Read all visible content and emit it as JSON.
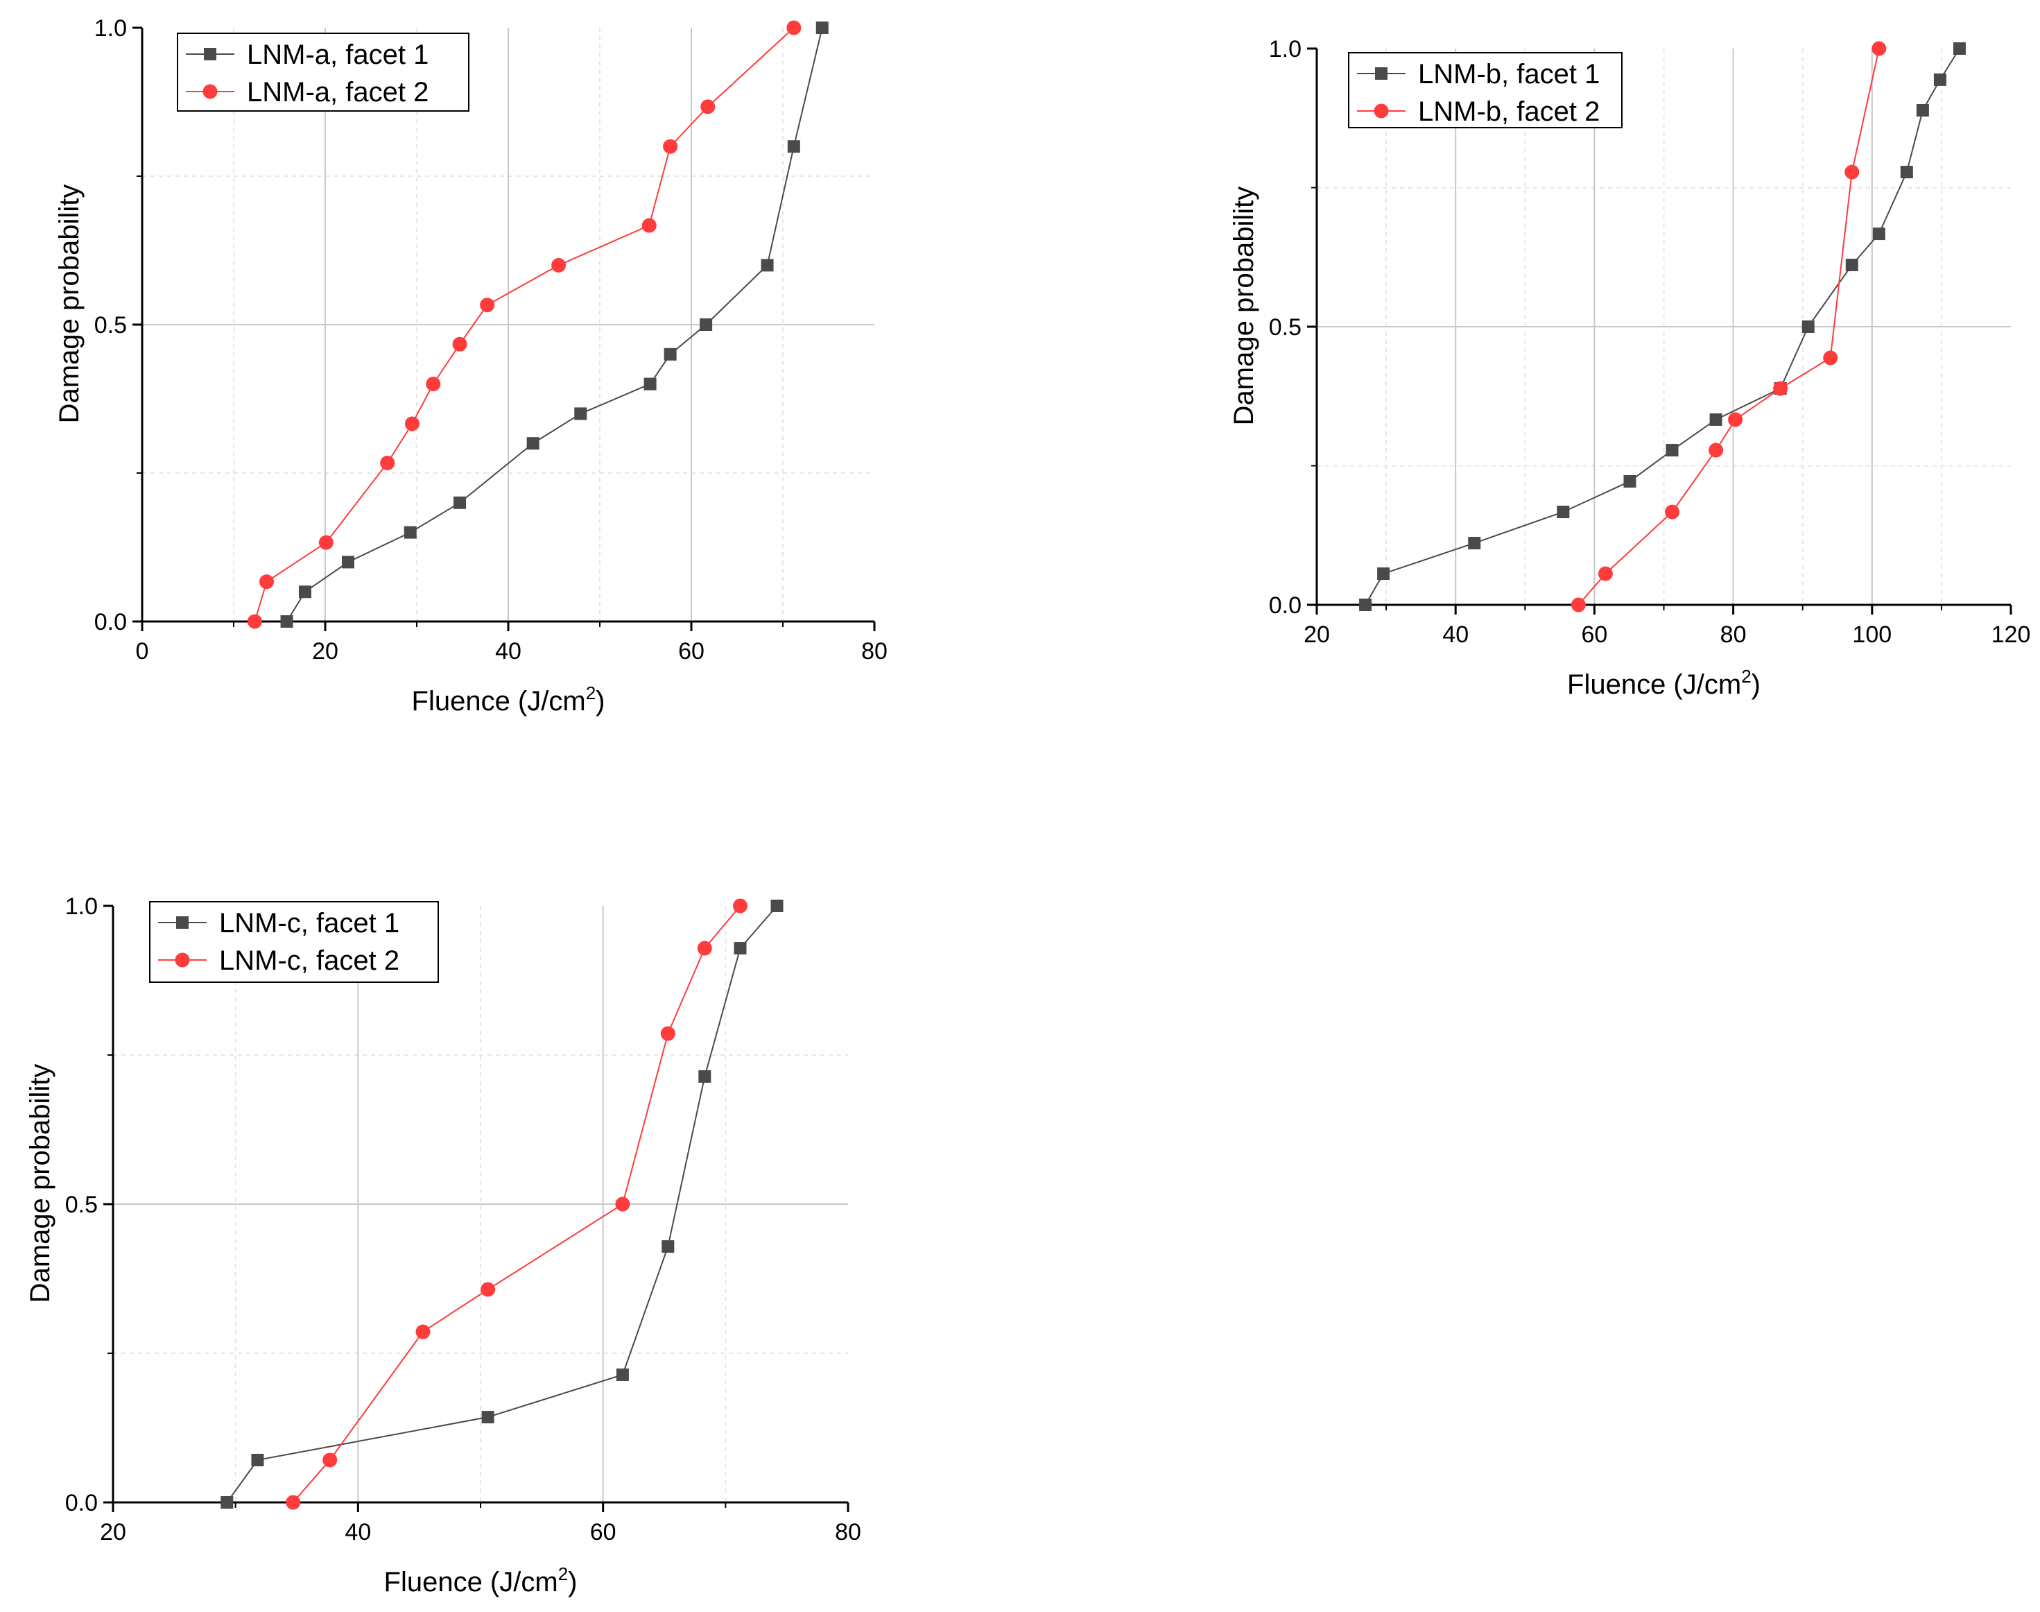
{
  "colors": {
    "facet1": "#4a4a4a",
    "facet2": "#ff3b3b",
    "grid_major": "#c8c8c8",
    "grid_minor": "#e6e6e6",
    "axis": "#000000"
  },
  "chart_data": [
    {
      "id": "lnm-a",
      "type": "line",
      "xlabel": "Fluence (J/cm",
      "xlabel_sup": "2",
      "xlabel_end": ")",
      "ylabel": "Damage probability",
      "xlim": [
        0,
        80
      ],
      "ylim": [
        0,
        1
      ],
      "xticks": [
        0,
        20,
        40,
        60,
        80
      ],
      "xtick_labels": [
        "0",
        "20",
        "40",
        "60",
        "80"
      ],
      "yticks": [
        0,
        0.5,
        1
      ],
      "ytick_labels": [
        "0.0",
        "0.5",
        "1.0"
      ],
      "legend_position": "top-left",
      "series": [
        {
          "name": "LNM-a, facet 1",
          "marker": "square",
          "x": [
            15.8,
            17.8,
            22.5,
            29.3,
            34.7,
            42.7,
            47.9,
            55.5,
            57.7,
            61.6,
            68.3,
            71.2,
            74.3
          ],
          "y": [
            0,
            0.05,
            0.1,
            0.15,
            0.2,
            0.3,
            0.35,
            0.4,
            0.45,
            0.5,
            0.6,
            0.8,
            1.0
          ]
        },
        {
          "name": "LNM-a, facet 2",
          "marker": "circle",
          "x": [
            12.3,
            13.6,
            20.1,
            26.8,
            29.5,
            31.8,
            34.7,
            37.7,
            45.5,
            55.4,
            57.7,
            61.8,
            71.2
          ],
          "y": [
            0,
            0.067,
            0.133,
            0.267,
            0.333,
            0.4,
            0.467,
            0.533,
            0.6,
            0.667,
            0.8,
            0.867,
            1.0
          ]
        }
      ]
    },
    {
      "id": "lnm-b",
      "type": "line",
      "xlabel": "Fluence (J/cm",
      "xlabel_sup": "2",
      "xlabel_end": ")",
      "ylabel": "Damage probability",
      "xlim": [
        20,
        120
      ],
      "ylim": [
        0,
        1
      ],
      "xticks": [
        20,
        40,
        60,
        80,
        100,
        120
      ],
      "xtick_labels": [
        "20",
        "40",
        "60",
        "80",
        "100",
        "120"
      ],
      "yticks": [
        0,
        0.5,
        1
      ],
      "ytick_labels": [
        "0.0",
        "0.5",
        "1.0"
      ],
      "legend_position": "top-left",
      "series": [
        {
          "name": "LNM-b, facet 1",
          "marker": "square",
          "x": [
            27.0,
            29.6,
            42.7,
            55.5,
            65.1,
            71.2,
            77.5,
            86.8,
            90.8,
            97.1,
            101.0,
            105.0,
            107.3,
            109.8,
            112.6
          ],
          "y": [
            0,
            0.056,
            0.111,
            0.167,
            0.222,
            0.278,
            0.333,
            0.389,
            0.5,
            0.611,
            0.667,
            0.778,
            0.889,
            0.944,
            1.0
          ]
        },
        {
          "name": "LNM-b, facet 2",
          "marker": "circle",
          "x": [
            57.7,
            61.6,
            71.2,
            77.5,
            80.3,
            86.8,
            94.0,
            97.1,
            101.0
          ],
          "y": [
            0,
            0.056,
            0.167,
            0.278,
            0.333,
            0.389,
            0.444,
            0.778,
            1.0
          ]
        }
      ]
    },
    {
      "id": "lnm-c",
      "type": "line",
      "xlabel": "Fluence (J/cm",
      "xlabel_sup": "2",
      "xlabel_end": ")",
      "ylabel": "Damage probability",
      "xlim": [
        20,
        80
      ],
      "ylim": [
        0,
        1
      ],
      "xticks": [
        20,
        40,
        60,
        80
      ],
      "xtick_labels": [
        "20",
        "40",
        "60",
        "80"
      ],
      "yticks": [
        0,
        0.5,
        1
      ],
      "ytick_labels": [
        "0.0",
        "0.5",
        "1.0"
      ],
      "legend_position": "top-left",
      "series": [
        {
          "name": "LNM-c, facet 1",
          "marker": "square",
          "x": [
            29.3,
            31.8,
            50.6,
            61.6,
            65.3,
            68.3,
            71.2,
            74.2
          ],
          "y": [
            0,
            0.071,
            0.143,
            0.214,
            0.429,
            0.714,
            0.929,
            1.0
          ]
        },
        {
          "name": "LNM-c, facet 2",
          "marker": "circle",
          "x": [
            34.7,
            37.7,
            45.3,
            50.6,
            61.6,
            65.3,
            68.3,
            71.2
          ],
          "y": [
            0,
            0.071,
            0.286,
            0.357,
            0.5,
            0.786,
            0.929,
            1.0
          ]
        }
      ]
    }
  ]
}
